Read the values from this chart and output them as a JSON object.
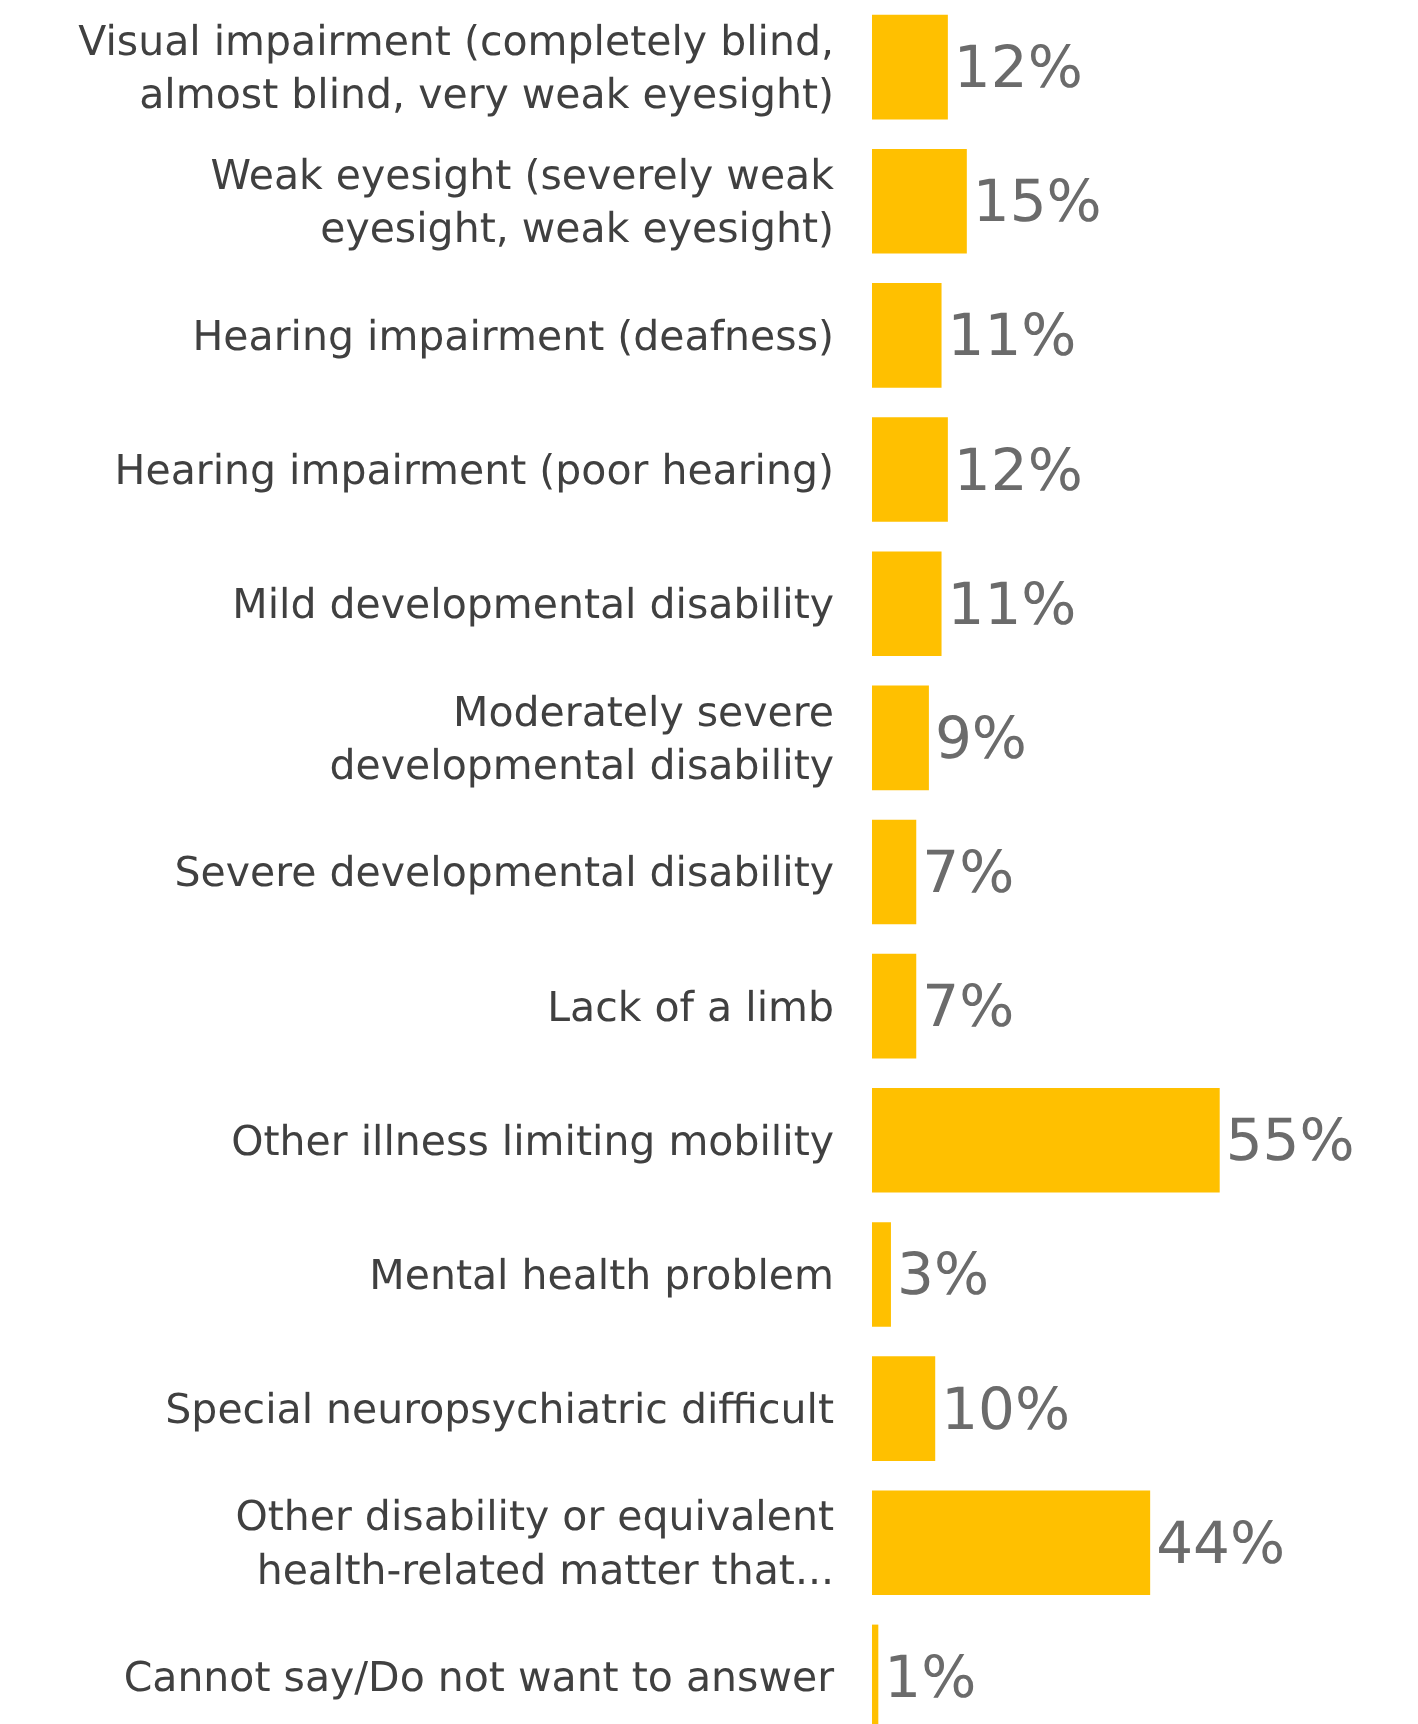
{
  "chart_data": {
    "type": "bar",
    "orientation": "horizontal",
    "categories": [
      "Visual impairment (completely blind,\nalmost blind, very weak eyesight)",
      "Weak eyesight (severely weak\neyesight, weak eyesight)",
      "Hearing impairment (deafness)",
      "Hearing impairment (poor hearing)",
      "Mild developmental disability",
      "Moderately severe\ndevelopmental disability",
      "Severe developmental disability",
      "Lack of a limb",
      "Other illness limiting mobility",
      "Mental health problem",
      "Special neuropsychiatric difficult",
      "Other disability or equivalent\nhealth-related matter that...",
      "Cannot say/Do not want to answer"
    ],
    "values": [
      12,
      15,
      11,
      12,
      11,
      9,
      7,
      7,
      55,
      3,
      10,
      44,
      1
    ],
    "value_labels": [
      "12%",
      "15%",
      "11%",
      "12%",
      "11%",
      "9%",
      "7%",
      "7%",
      "55%",
      "3%",
      "10%",
      "44%",
      "1%"
    ],
    "color": "#ffc000",
    "grid": false,
    "legend": false
  }
}
